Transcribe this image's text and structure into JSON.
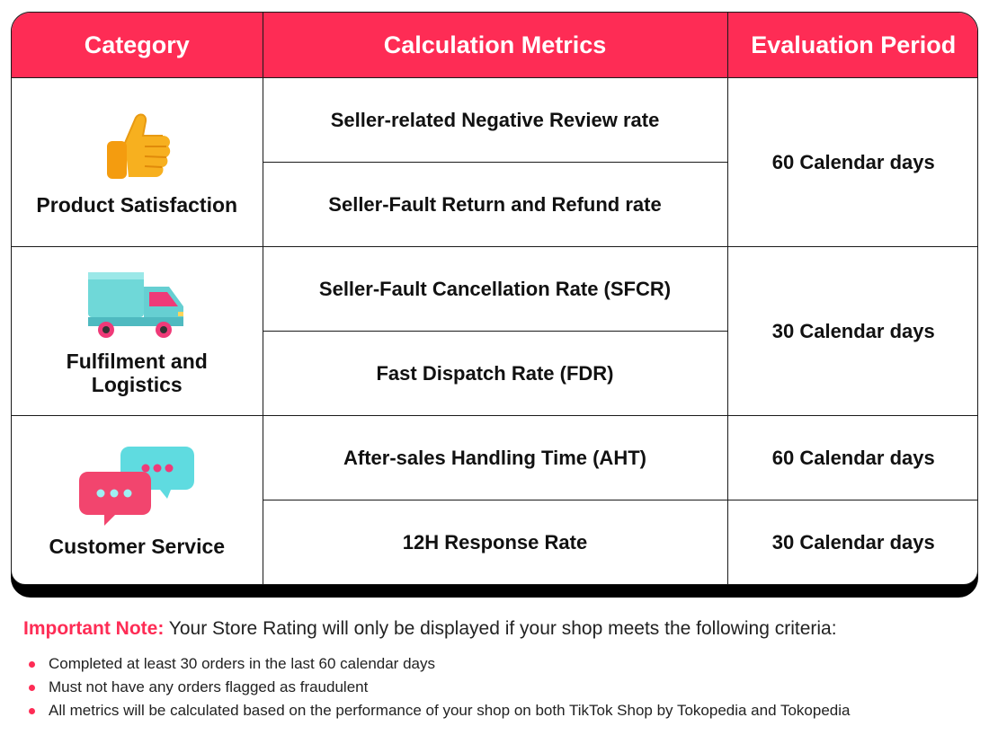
{
  "table": {
    "headers": [
      "Category",
      "Calculation Metrics",
      "Evaluation Period"
    ],
    "groups": [
      {
        "category": "Product Satisfaction",
        "icon": "thumbs-up-icon",
        "metrics": [
          "Seller-related Negative Review rate",
          "Seller-Fault Return and Refund rate"
        ],
        "periods": [
          "60 Calendar days"
        ]
      },
      {
        "category_line1": "Fulfilment and",
        "category_line2": "Logistics",
        "icon": "delivery-truck-icon",
        "metrics": [
          "Seller-Fault Cancellation Rate (SFCR)",
          "Fast Dispatch Rate (FDR)"
        ],
        "periods": [
          "30 Calendar days"
        ]
      },
      {
        "category": "Customer Service",
        "icon": "chat-bubbles-icon",
        "metrics": [
          "After-sales Handling Time (AHT)",
          "12H Response Rate"
        ],
        "periods": [
          "60 Calendar days",
          "30 Calendar days"
        ]
      }
    ]
  },
  "note": {
    "highlight": "Important Note:",
    "text": " Your Store Rating will only be displayed if your shop meets the following criteria:",
    "criteria": [
      "Completed at least 30 orders in the last 60 calendar days",
      "Must not have any orders flagged as fraudulent",
      "All metrics will be calculated based on the performance of your shop on both TikTok Shop by Tokopedia and Tokopedia"
    ]
  },
  "colors": {
    "accent": "#fe2c55",
    "border": "#1a1a1a"
  }
}
